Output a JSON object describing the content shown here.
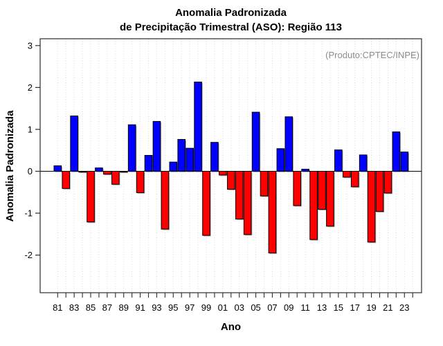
{
  "page": {
    "title_line1": "Anomalia Padronizada",
    "title_line2": "de Precipitação Trimestral (ASO): Região 113"
  },
  "chart_data": {
    "type": "bar",
    "title": "Anomalia Padronizada de Precipitação Trimestral (ASO): Região 113",
    "annotation": "(Produto:CPTEC/INPE)",
    "xlabel": "Ano",
    "ylabel": "Anomalia Padronizada",
    "categories": [
      "1981",
      "1982",
      "1983",
      "1984",
      "1985",
      "1986",
      "1987",
      "1988",
      "1989",
      "1990",
      "1991",
      "1992",
      "1993",
      "1994",
      "1995",
      "1996",
      "1997",
      "1998",
      "1999",
      "2000",
      "2001",
      "2002",
      "2003",
      "2004",
      "2005",
      "2006",
      "2007",
      "2008",
      "2009",
      "2010",
      "2011",
      "2012",
      "2013",
      "2014",
      "2015",
      "2016",
      "2017",
      "2018",
      "2019",
      "2020",
      "2021",
      "2022",
      "2023"
    ],
    "values": [
      0.13,
      -0.41,
      1.32,
      -0.02,
      -1.21,
      0.08,
      -0.07,
      -0.31,
      -0.02,
      1.11,
      -0.51,
      0.38,
      1.19,
      -1.38,
      0.22,
      0.76,
      0.55,
      2.13,
      -1.53,
      0.69,
      -0.09,
      -0.43,
      -1.14,
      -1.51,
      1.41,
      -0.59,
      -1.95,
      0.54,
      1.3,
      -0.82,
      0.05,
      -1.63,
      -0.91,
      -1.31,
      0.51,
      -0.14,
      -0.37,
      0.39,
      -1.69,
      -0.96,
      -0.52,
      0.94,
      0.46
    ],
    "x_tick_labels_shown": [
      "81",
      "83",
      "85",
      "87",
      "89",
      "91",
      "93",
      "95",
      "97",
      "99",
      "01",
      "03",
      "05",
      "07",
      "09",
      "11",
      "13",
      "15",
      "17",
      "19",
      "21",
      "23"
    ],
    "yticks": [
      3,
      2,
      1,
      0,
      -1,
      -2
    ],
    "ylim": [
      -2.9,
      3.17
    ],
    "grid": "vertical-dotted",
    "legend": "none",
    "colors": {
      "positive": "#0000FF",
      "negative": "#FF0000",
      "bar_border": "#000000",
      "bar_shadow": "#999999",
      "grid": "#D6D6D6",
      "axis": "#2B2B2B",
      "annotation_text": "#8A8A8A"
    }
  }
}
